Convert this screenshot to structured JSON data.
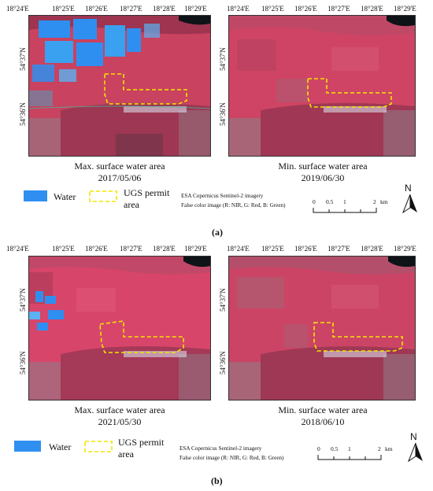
{
  "top": {
    "left_map": {
      "lon_ticks": [
        "18°24'E",
        "18°25'E",
        "18°26'E",
        "18°27'E",
        "18°28'E",
        "18°29'E"
      ],
      "lat_ticks": [
        "54°37'N",
        "54°36'N"
      ],
      "caption_line1": "Max. surface water area",
      "caption_line2": "2017/05/06"
    },
    "right_map": {
      "lon_ticks": [
        "18°24'E",
        "18°25'E",
        "18°26'E",
        "18°27'E",
        "18°28'E",
        "18°29'E"
      ],
      "lat_ticks": [
        "54°37'N",
        "54°36'N"
      ],
      "caption_line1": "Min. surface water area",
      "caption_line2": "2019/06/30"
    },
    "legend": {
      "water_label": "Water",
      "ugs_label_line1": "UGS permit",
      "ugs_label_line2": "area",
      "imagery_line1": "ESA Copernicus Sentinel-2 imagery",
      "imagery_line2": "False color image (R: NIR, G: Red, B: Green)",
      "scale_labels": [
        "0",
        "0.5",
        "1",
        "2"
      ],
      "scale_unit": "km",
      "north": "N"
    },
    "panel_label": "(a)"
  },
  "bottom": {
    "left_map": {
      "lon_ticks": [
        "18°24'E",
        "18°25'E",
        "18°26'E",
        "18°27'E",
        "18°28'E",
        "18°29'E"
      ],
      "lat_ticks": [
        "54°37'N",
        "54°36'N"
      ],
      "caption_line1": "Max. surface water area",
      "caption_line2": "2021/05/30"
    },
    "right_map": {
      "lon_ticks": [
        "18°24'E",
        "18°25'E",
        "18°26'E",
        "18°27'E",
        "18°28'E",
        "18°29'E"
      ],
      "lat_ticks": [
        "54°37'N",
        "54°36'N"
      ],
      "caption_line1": "Min. surface water area",
      "caption_line2": "2018/06/10"
    },
    "legend": {
      "water_label": "Water",
      "ugs_label_line1": "UGS permit",
      "ugs_label_line2": "area",
      "imagery_line1": "ESA Copernicus Sentinel-2 imagery",
      "imagery_line2": "False color image (R: NIR, G: Red, B: Green)",
      "scale_labels": [
        "0",
        "0.5",
        "1",
        "2"
      ],
      "scale_unit": "km",
      "north": "N"
    },
    "panel_label": "(b)"
  },
  "colors": {
    "water": "#2f8ff0",
    "vegetation": "#d2405f",
    "ugs_outline": "#f2e600",
    "sea": "#0e1318",
    "settlement": "#8f7b86"
  }
}
